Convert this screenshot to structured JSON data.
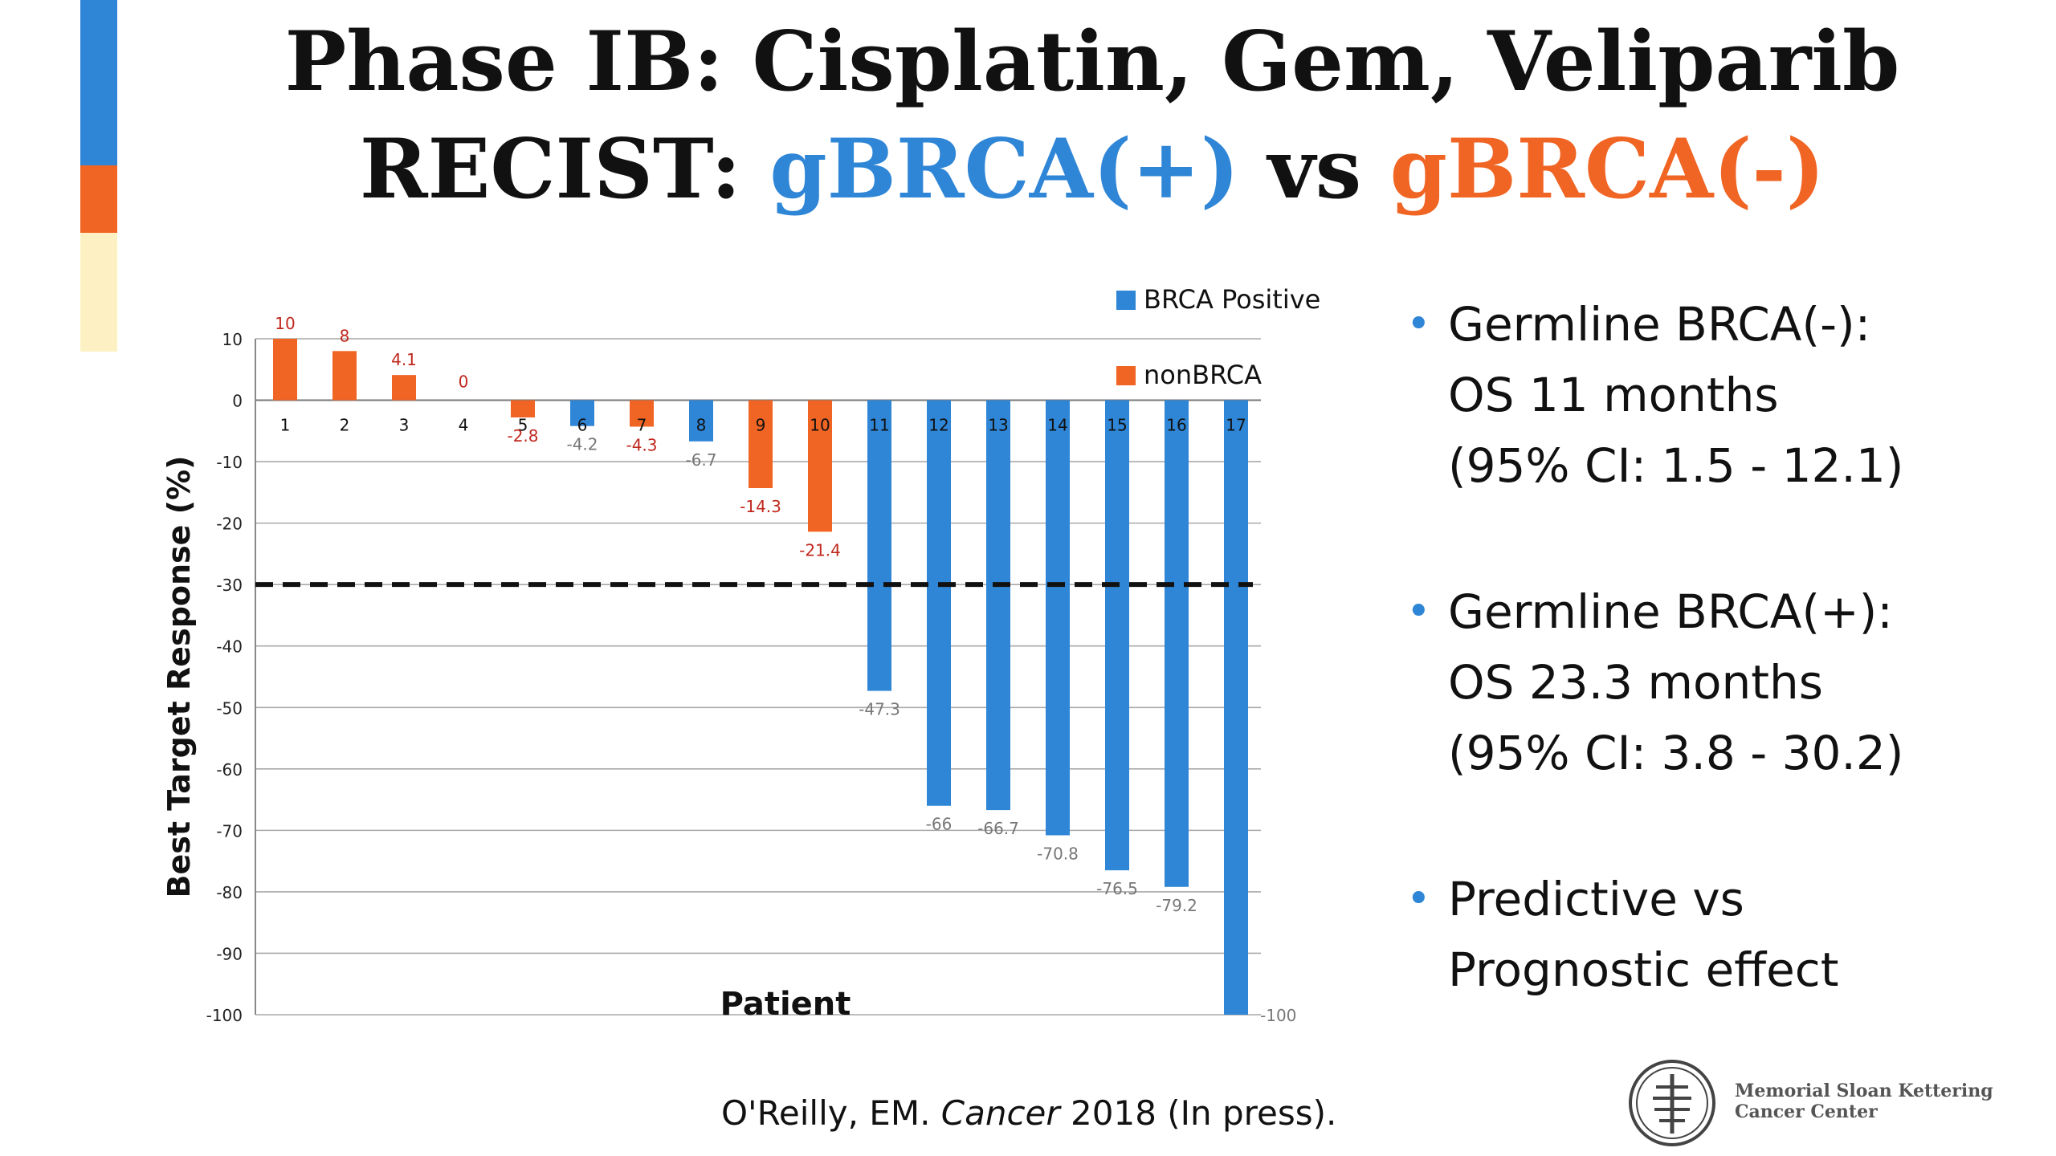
{
  "slide": {
    "title_line1": "Phase IB: Cisplatin, Gem, Veliparib",
    "title_line2_prefix": "RECIST: ",
    "title_line2_pos": "gBRCA(+)",
    "title_line2_vs": " vs ",
    "title_line2_neg": "gBRCA(-)",
    "accent_colors": [
      "#2f86d6",
      "#f06424",
      "#fdf1c4"
    ],
    "bullets": [
      {
        "line1": "Germline BRCA(-):",
        "line2": "OS 11 months",
        "line3": "(95% CI: 1.5 - 12.1)"
      },
      {
        "line1": "Germline BRCA(+):",
        "line2": "OS 23.3 months",
        "line3": "(95% CI: 3.8 - 30.2)"
      },
      {
        "line1": "Predictive vs",
        "line2": "Prognostic effect"
      }
    ],
    "citation_author": "O'Reilly, EM.  ",
    "citation_journal": "Cancer",
    "citation_rest": " 2018 (In press).",
    "logo_line1": "Memorial Sloan Kettering",
    "logo_line2": "Cancer Center",
    "logo_icon": "msk-tree-seal-icon"
  },
  "chart_data": {
    "type": "bar",
    "ylabel": "Best Target Response (%)",
    "xlabel": "Patient",
    "ylim": [
      -100,
      10
    ],
    "yticks": [
      10,
      0,
      -10,
      -20,
      -30,
      -40,
      -50,
      -60,
      -70,
      -80,
      -90,
      -100
    ],
    "grid": true,
    "threshold": -30,
    "legend_position": "top-right",
    "categories": [
      "1",
      "2",
      "3",
      "4",
      "5",
      "6",
      "7",
      "8",
      "9",
      "10",
      "11",
      "12",
      "13",
      "14",
      "15",
      "16",
      "17"
    ],
    "values": [
      10,
      8,
      4.1,
      0,
      -2.8,
      -4.2,
      -4.3,
      -6.7,
      -14.3,
      -21.4,
      -47.3,
      -66,
      -66.7,
      -70.8,
      -76.5,
      -79.2,
      -100
    ],
    "value_labels": [
      "10",
      "8",
      "4.1",
      "0",
      "-2.8",
      "-4.2",
      "-4.3",
      "-6.7",
      "-14.3",
      "-21.4",
      "-47.3",
      "-66",
      "-66.7",
      "-70.8",
      "-76.5",
      "-79.2",
      "-100"
    ],
    "groups": [
      "nonBRCA",
      "nonBRCA",
      "nonBRCA",
      "nonBRCA",
      "nonBRCA",
      "BRCA Positive",
      "nonBRCA",
      "BRCA Positive",
      "nonBRCA",
      "nonBRCA",
      "BRCA Positive",
      "BRCA Positive",
      "BRCA Positive",
      "BRCA Positive",
      "BRCA Positive",
      "BRCA Positive",
      "BRCA Positive"
    ],
    "series": [
      {
        "name": "BRCA Positive",
        "color": "#2f86d6",
        "label_color": "#777777"
      },
      {
        "name": "nonBRCA",
        "color": "#f06424",
        "label_color": "#c0281e"
      }
    ]
  }
}
